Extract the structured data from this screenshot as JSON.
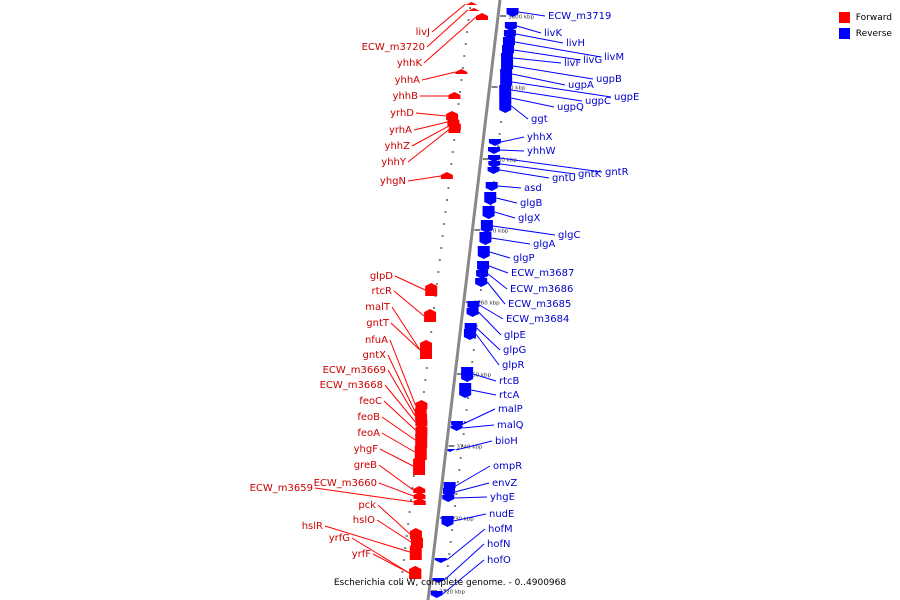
{
  "colors": {
    "forward": "#ff0000",
    "reverse": "#0000ff",
    "axis": "#888888",
    "text_forward": "#cc0000",
    "text_reverse": "#0000cc"
  },
  "legend": {
    "forward": "Forward",
    "reverse": "Reverse"
  },
  "caption": "Escherichia coli W, complete genome. - 0..4900968",
  "ticks": [
    "3800 kbp",
    "3790 kbp",
    "3780 kbp",
    "3770 kbp",
    "3760 kbp",
    "3750 kbp",
    "3740 kbp",
    "3730 kbp",
    "3720 kbp"
  ],
  "forward_genes": [
    "livJ",
    "ECW_m3720",
    "yhhK",
    "yhhA",
    "yhhB",
    "yrhD",
    "yrhA",
    "yhhZ",
    "yhhY",
    "yhgN",
    "glpD",
    "rtcR",
    "malT",
    "gntT",
    "nfuA",
    "gntX",
    "ECW_m3669",
    "ECW_m3668",
    "feoC",
    "feoB",
    "feoA",
    "yhgF",
    "greB",
    "ECW_m3660",
    "ECW_m3659",
    "pck",
    "hslO",
    "hslR",
    "yrfG",
    "yrfF"
  ],
  "reverse_genes": [
    "ECW_m3719",
    "livK",
    "livH",
    "livM",
    "livG",
    "livF",
    "ugpB",
    "ugpA",
    "ugpE",
    "ugpC",
    "ugpQ",
    "ggt",
    "yhhX",
    "yhhW",
    "gntR",
    "gntK",
    "gntU",
    "asd",
    "glgB",
    "glgX",
    "glgC",
    "glgA",
    "glgP",
    "ECW_m3687",
    "ECW_m3686",
    "ECW_m3685",
    "ECW_m3684",
    "glpE",
    "glpG",
    "glpR",
    "rtcB",
    "rtcA",
    "malP",
    "malQ",
    "bioH",
    "ompR",
    "envZ",
    "yhgE",
    "nudE",
    "hofM",
    "hofN",
    "hofO"
  ]
}
